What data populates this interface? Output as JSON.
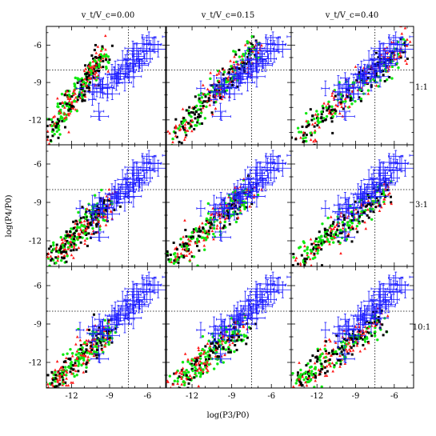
{
  "chart_data": {
    "type": "scatter",
    "layout": "3x3 grid of panels",
    "column_titles": [
      "v_t/V_c=0.00",
      "v_t/V_c=0.15",
      "v_t/V_c=0.40"
    ],
    "row_labels": [
      "1:1",
      "3:1",
      "10:1"
    ],
    "xlabel": "log(P3/P0)",
    "ylabel": "log(P4/P0)",
    "xlim": [
      -14,
      -4.5
    ],
    "ylim": [
      -14,
      -4.5
    ],
    "xticks": [
      "-12",
      "-9",
      "-6"
    ],
    "yticks": [
      "-6",
      "-9",
      "-12"
    ],
    "x_tick_values": [
      -12,
      -9,
      -6
    ],
    "y_tick_values": [
      -6,
      -9,
      -12
    ],
    "reference_lines": {
      "x": -7.5,
      "y": -8,
      "style": "dotted"
    },
    "colors": {
      "red": "#ff1a1a",
      "green": "#10e810",
      "black": "#000000",
      "blue": "#1a1aff"
    },
    "observed_data": {
      "color": "blue",
      "marker": "points with x/y error bars",
      "x_range": [
        -10.2,
        -5.2
      ],
      "y_range": [
        -10.0,
        -5.8
      ],
      "trend": "positive correlation"
    },
    "panels": [
      {
        "row": 0,
        "col": 0,
        "model_x_range": [
          -14,
          -9.3
        ],
        "model_y_range": [
          -13.5,
          -6.5
        ],
        "model_trend": "positive correlation"
      },
      {
        "row": 0,
        "col": 1,
        "model_x_range": [
          -13.5,
          -7
        ],
        "model_y_range": [
          -13.5,
          -6
        ],
        "model_trend": "positive correlation"
      },
      {
        "row": 0,
        "col": 2,
        "model_x_range": [
          -13.5,
          -5
        ],
        "model_y_range": [
          -13.5,
          -6
        ],
        "model_trend": "positive correlation"
      },
      {
        "row": 1,
        "col": 0,
        "model_x_range": [
          -14,
          -9
        ],
        "model_y_range": [
          -14,
          -9
        ],
        "model_trend": "positive correlation"
      },
      {
        "row": 1,
        "col": 1,
        "model_x_range": [
          -14,
          -7.5
        ],
        "model_y_range": [
          -14,
          -8
        ],
        "model_trend": "positive correlation"
      },
      {
        "row": 1,
        "col": 2,
        "model_x_range": [
          -14,
          -6.5
        ],
        "model_y_range": [
          -14,
          -8
        ],
        "model_trend": "positive correlation"
      },
      {
        "row": 2,
        "col": 0,
        "model_x_range": [
          -14,
          -9
        ],
        "model_y_range": [
          -14,
          -9.5
        ],
        "model_trend": "positive correlation"
      },
      {
        "row": 2,
        "col": 1,
        "model_x_range": [
          -13.5,
          -8
        ],
        "model_y_range": [
          -14,
          -9
        ],
        "model_trend": "positive correlation"
      },
      {
        "row": 2,
        "col": 2,
        "model_x_range": [
          -14,
          -7
        ],
        "model_y_range": [
          -14,
          -8.5
        ],
        "model_trend": "positive correlation"
      }
    ]
  }
}
